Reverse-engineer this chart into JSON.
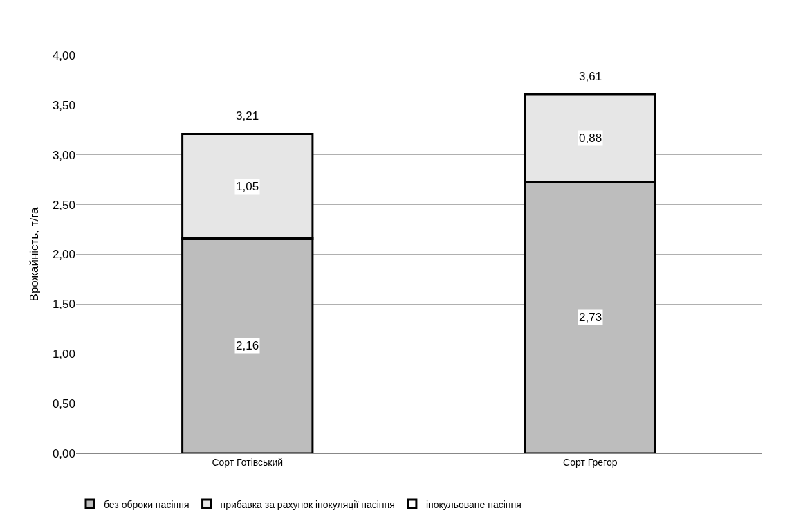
{
  "chart_data": {
    "type": "bar",
    "stacked": true,
    "ylabel": "Врожайність, т/га",
    "categories": [
      "Сорт Готівський",
      "Сорт Грегор"
    ],
    "series": [
      {
        "name": "без оброки насіння",
        "color": "#bdbdbd",
        "values": [
          2.16,
          2.73
        ],
        "value_labels": [
          "2,16",
          "2,73"
        ]
      },
      {
        "name": "прибавка за рахунок інокуляції насіння",
        "color": "#e6e6e6",
        "values": [
          1.05,
          0.88
        ],
        "value_labels": [
          "1,05",
          "0,88"
        ]
      },
      {
        "name": "інокульоване насіння",
        "color": "#000000",
        "values": [
          null,
          null
        ]
      }
    ],
    "totals": [
      "3,21",
      "3,61"
    ],
    "ylim": [
      0,
      4
    ],
    "yticks": [
      {
        "value": 0,
        "label": "0,00"
      },
      {
        "value": 0.5,
        "label": "0,50"
      },
      {
        "value": 1,
        "label": "1,00"
      },
      {
        "value": 1.5,
        "label": "1,50"
      },
      {
        "value": 2,
        "label": "2,00"
      },
      {
        "value": 2.5,
        "label": "2,50"
      },
      {
        "value": 3,
        "label": "3,00"
      },
      {
        "value": 3.5,
        "label": "3,50"
      },
      {
        "value": 4,
        "label": "4,00"
      }
    ],
    "grid": "y",
    "legend": "bottom"
  }
}
